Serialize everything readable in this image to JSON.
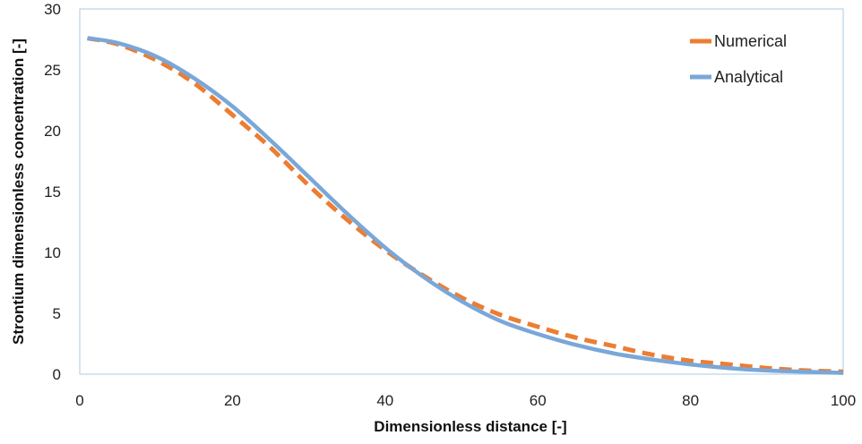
{
  "chart_data": {
    "type": "line",
    "title": "",
    "xlabel": "Dimensionless distance [-]",
    "ylabel": "Strontium dimensionless concentration [-]",
    "xlim": [
      0,
      100
    ],
    "ylim": [
      0,
      30
    ],
    "x_ticks": [
      0,
      20,
      40,
      60,
      80,
      100
    ],
    "y_ticks": [
      0,
      5,
      10,
      15,
      20,
      25,
      30
    ],
    "grid": false,
    "legend_position": "top-right",
    "series": [
      {
        "name": "Numerical",
        "color": "#ED7D31",
        "style": "dashed",
        "x": [
          1,
          5,
          10,
          15,
          20,
          25,
          30,
          35,
          40,
          45,
          50,
          55,
          60,
          65,
          70,
          75,
          80,
          85,
          90,
          95,
          100
        ],
        "y": [
          27.6,
          27.1,
          25.8,
          23.9,
          21.3,
          18.6,
          15.5,
          12.7,
          10.2,
          8.1,
          6.3,
          4.9,
          3.9,
          3.0,
          2.3,
          1.6,
          1.1,
          0.8,
          0.5,
          0.3,
          0.2
        ]
      },
      {
        "name": "Analytical",
        "color": "#7AA7D8",
        "style": "solid",
        "x": [
          1,
          5,
          10,
          15,
          20,
          25,
          30,
          35,
          40,
          45,
          50,
          55,
          60,
          65,
          70,
          75,
          80,
          85,
          90,
          95,
          100
        ],
        "y": [
          27.6,
          27.2,
          26.1,
          24.3,
          22.0,
          19.2,
          16.2,
          13.2,
          10.4,
          8.0,
          6.0,
          4.4,
          3.3,
          2.4,
          1.7,
          1.2,
          0.8,
          0.5,
          0.3,
          0.2,
          0.1
        ]
      }
    ]
  }
}
